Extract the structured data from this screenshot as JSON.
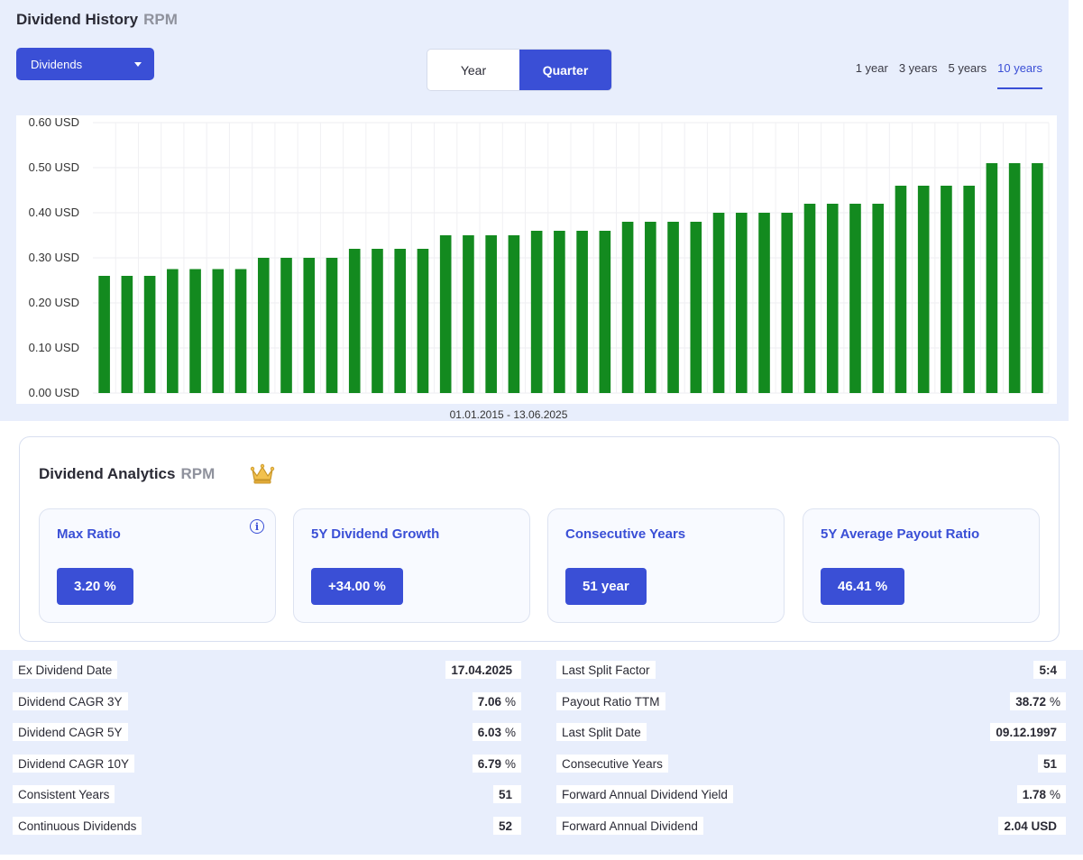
{
  "header": {
    "title": "Dividend History",
    "ticker": "RPM"
  },
  "metric_select": {
    "value": "Dividends",
    "icon": "caret-down-icon"
  },
  "period_toggle": {
    "options": [
      "Year",
      "Quarter"
    ],
    "active": "Quarter"
  },
  "ranges": {
    "options": [
      "1 year",
      "3 years",
      "5 years",
      "10 years"
    ],
    "active": "10 years"
  },
  "chart_data": {
    "type": "bar",
    "color": "#138a1f",
    "ylim": [
      0,
      0.6
    ],
    "y_ticks": [
      "0.00 USD",
      "0.10 USD",
      "0.20 USD",
      "0.30 USD",
      "0.40 USD",
      "0.50 USD",
      "0.60 USD"
    ],
    "grid": true,
    "date_range": "01.01.2015 - 13.06.2025",
    "values": [
      0.26,
      0.26,
      0.26,
      0.275,
      0.275,
      0.275,
      0.275,
      0.3,
      0.3,
      0.3,
      0.3,
      0.32,
      0.32,
      0.32,
      0.32,
      0.35,
      0.35,
      0.35,
      0.35,
      0.36,
      0.36,
      0.36,
      0.36,
      0.38,
      0.38,
      0.38,
      0.38,
      0.4,
      0.4,
      0.4,
      0.4,
      0.42,
      0.42,
      0.42,
      0.42,
      0.46,
      0.46,
      0.46,
      0.46,
      0.51,
      0.51,
      0.51
    ]
  },
  "analytics": {
    "title": "Dividend Analytics",
    "ticker": "RPM",
    "icon": "crown-icon",
    "cards": [
      {
        "label": "Max Ratio",
        "value": "3.20 %",
        "info_icon": "info-icon"
      },
      {
        "label": "5Y Dividend Growth",
        "value": "+34.00 %"
      },
      {
        "label": "Consecutive Years",
        "value": "51 year"
      },
      {
        "label": "5Y Average Payout Ratio",
        "value": "46.41 %"
      }
    ]
  },
  "stats": {
    "left": [
      {
        "label": "Ex Dividend Date",
        "value": "17.04.2025",
        "unit": ""
      },
      {
        "label": "Dividend CAGR 3Y",
        "value": "7.06",
        "unit": "%"
      },
      {
        "label": "Dividend CAGR 5Y",
        "value": "6.03",
        "unit": "%"
      },
      {
        "label": "Dividend CAGR 10Y",
        "value": "6.79",
        "unit": "%"
      },
      {
        "label": "Consistent Years",
        "value": "51",
        "unit": ""
      },
      {
        "label": "Continuous Dividends",
        "value": "52",
        "unit": ""
      }
    ],
    "right": [
      {
        "label": "Last Split Factor",
        "value": "5:4",
        "unit": ""
      },
      {
        "label": "Payout Ratio TTM",
        "value": "38.72",
        "unit": "%"
      },
      {
        "label": "Last Split Date",
        "value": "09.12.1997",
        "unit": ""
      },
      {
        "label": "Consecutive Years",
        "value": "51",
        "unit": ""
      },
      {
        "label": "Forward Annual Dividend Yield",
        "value": "1.78",
        "unit": "%"
      },
      {
        "label": "Forward Annual Dividend",
        "value": "2.04 USD",
        "unit": ""
      }
    ]
  }
}
